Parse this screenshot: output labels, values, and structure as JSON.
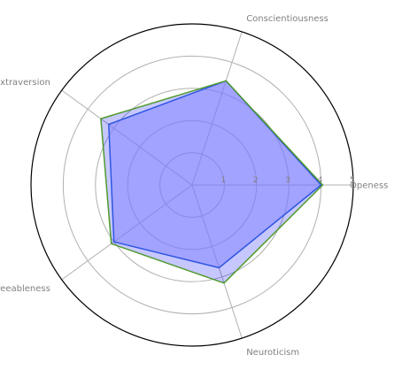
{
  "chart_data": {
    "type": "radar",
    "axes": [
      "Openess",
      "Conscientiousness",
      "Extraversion",
      "Agreeableness",
      "Neuroticism"
    ],
    "rlim": [
      0,
      5
    ],
    "ticks": [
      1,
      2,
      3,
      4,
      5
    ],
    "tick_labels": [
      "1",
      "2",
      "3",
      "4",
      "5"
    ],
    "grid": true,
    "series": [
      {
        "values": [
          4.0,
          3.4,
          3.2,
          3.0,
          2.7
        ],
        "fill": "#b0b0ff",
        "fill_opacity": 0.6,
        "line": "#3a6fd8"
      },
      {
        "values": [
          4.05,
          3.4,
          3.5,
          3.1,
          3.2
        ],
        "fill": "#0000ff",
        "fill_opacity": 0.22,
        "line": "#4f9a2e"
      }
    ],
    "colors": {
      "outer_circle": "#000000",
      "grid": "#b0b0b0",
      "text": "#808080"
    }
  }
}
